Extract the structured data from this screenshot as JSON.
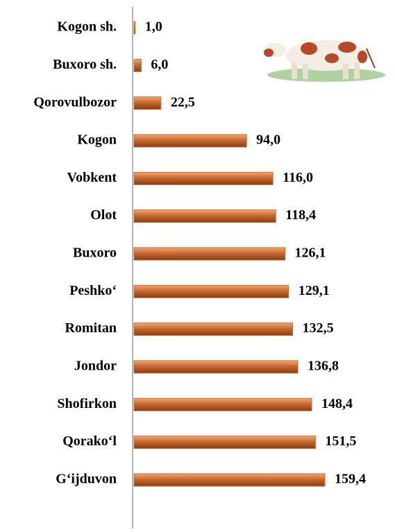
{
  "chart_data": {
    "type": "bar",
    "orientation": "horizontal",
    "categories": [
      "Kogon sh.",
      "Buxoro sh.",
      "Qorovulbozor",
      "Kogon",
      "Vobkent",
      "Olot",
      "Buxoro",
      "Peshko‘",
      "Romitan",
      "Jondor",
      "Shofirkon",
      "Qorako‘l",
      "G‘ijduvon"
    ],
    "values": [
      1.0,
      6.0,
      22.5,
      94.0,
      116.0,
      118.4,
      126.1,
      129.1,
      132.5,
      136.8,
      148.4,
      151.5,
      159.4
    ],
    "value_labels": [
      "1,0",
      "6,0",
      "22,5",
      "94,0",
      "116,0",
      "118,4",
      "126,1",
      "129,1",
      "132,5",
      "136,8",
      "148,4",
      "151,5",
      "159,4"
    ],
    "color": "#c8692f"
  }
}
